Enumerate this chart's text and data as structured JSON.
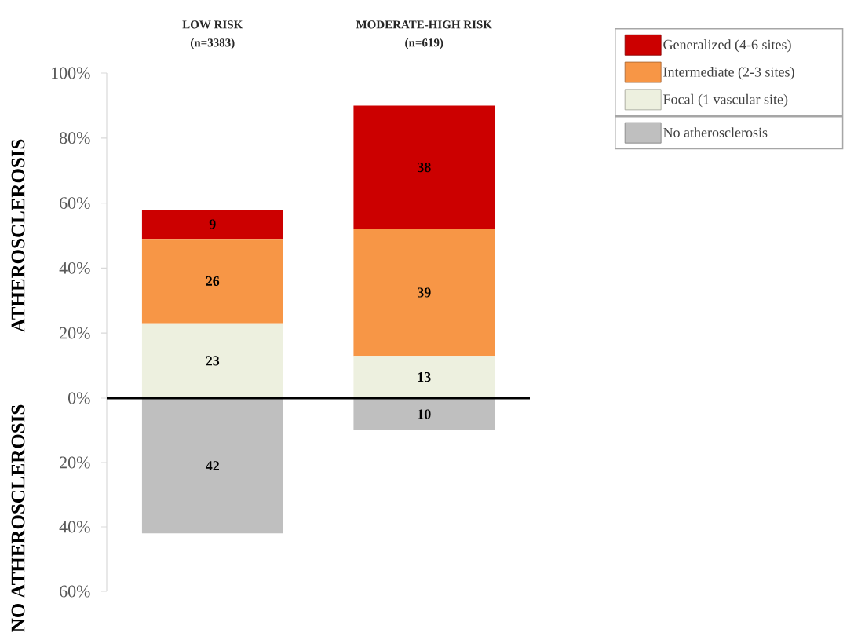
{
  "chart_data": [
    {
      "type": "bar",
      "stacked": true,
      "data_labels": true,
      "categories": [
        "LOW RISK (n=3383)",
        "MODERATE-HIGH RISK (n=619)"
      ],
      "ylabel": "ATHEROSCLEROSIS",
      "series": [
        {
          "name": "Focal (1 vascular site)",
          "color": "#edf0df",
          "values": [
            23,
            13
          ]
        },
        {
          "name": "Intermediate (2-3 sites)",
          "color": "#f79646",
          "values": [
            26,
            39
          ]
        },
        {
          "name": "Generalized (4-6 sites)",
          "color": "#cc0000",
          "values": [
            9,
            38
          ]
        }
      ],
      "ylim": [
        0,
        100
      ],
      "yticks": [
        {
          "value": 0,
          "label": "0%"
        },
        {
          "value": 20,
          "label": "20%"
        },
        {
          "value": 40,
          "label": "40%"
        },
        {
          "value": 60,
          "label": "60%"
        },
        {
          "value": 80,
          "label": "80%"
        },
        {
          "value": 100,
          "label": "100%"
        }
      ],
      "ref_lines": [
        {
          "axis": "y",
          "value": 0,
          "color": "#000000"
        }
      ],
      "legend": "top right"
    },
    {
      "type": "bar",
      "data_labels": true,
      "categories": [
        null,
        null
      ],
      "ylabel": "NO ATHEROSCLEROSIS",
      "series": [
        {
          "name": "No atherosclerosis",
          "color": "#bfbfbf",
          "values": [
            42,
            10
          ]
        }
      ],
      "ylim": [
        60,
        0
      ],
      "yticks": [
        {
          "value": 20,
          "label": "20%"
        },
        {
          "value": 40,
          "label": "40%"
        },
        {
          "value": 60,
          "label": "60%"
        }
      ],
      "tick_labels": "y",
      "legend": "top right"
    }
  ]
}
